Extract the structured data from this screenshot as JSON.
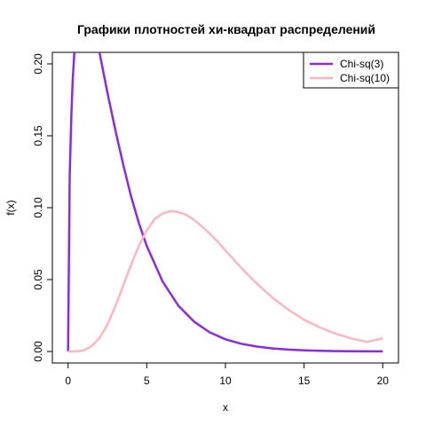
{
  "chart_data": {
    "type": "line",
    "title": "Графики плотностей хи-квадрат распределений",
    "xlabel": "x",
    "ylabel": "f(x)",
    "xlim": [
      -1,
      21
    ],
    "ylim": [
      -0.008,
      0.208
    ],
    "x_ticks": [
      0,
      5,
      10,
      15,
      20
    ],
    "x_tick_labels": [
      "0",
      "5",
      "10",
      "15",
      "20"
    ],
    "y_ticks": [
      0.0,
      0.05,
      0.1,
      0.15,
      0.2
    ],
    "y_tick_labels": [
      "0.00",
      "0.05",
      "0.10",
      "0.15",
      "0.20"
    ],
    "legend_position": "top-right",
    "grid": false,
    "series": [
      {
        "name": "Chi-sq(3)",
        "df": 3,
        "color": "#8a2be2",
        "x": [
          0,
          0.1,
          0.2,
          0.3,
          0.4,
          0.5,
          0.75,
          1,
          1.5,
          2,
          2.5,
          3,
          3.5,
          4,
          4.5,
          5,
          6,
          7,
          8,
          9,
          10,
          11,
          12,
          13,
          14,
          15,
          16,
          17,
          18,
          19,
          20
        ],
        "values": [
          0,
          0.1208,
          0.1629,
          0.1898,
          0.208,
          0.2197,
          0.2379,
          0.242,
          0.2309,
          0.2076,
          0.1801,
          0.1542,
          0.13,
          0.108,
          0.0892,
          0.0733,
          0.0488,
          0.032,
          0.0208,
          0.0133,
          0.0085,
          0.0054,
          0.0034,
          0.0021,
          0.0013,
          0.0008,
          0.0005,
          0.0003,
          0.0002,
          0.0001,
          0.0001
        ]
      },
      {
        "name": "Chi-sq(10)",
        "df": 10,
        "color": "#ffb6c1",
        "x": [
          0,
          0.5,
          1,
          1.5,
          2,
          2.5,
          3,
          3.5,
          4,
          4.5,
          5,
          5.5,
          6,
          6.5,
          7,
          7.5,
          8,
          8.5,
          9,
          9.5,
          10,
          11,
          12,
          13,
          14,
          15,
          16,
          17,
          18,
          19,
          20
        ],
        "values": [
          0,
          0.0001,
          0.0008,
          0.0037,
          0.0095,
          0.0187,
          0.0314,
          0.0458,
          0.0602,
          0.0735,
          0.0842,
          0.0921,
          0.0959,
          0.0976,
          0.097,
          0.095,
          0.0916,
          0.087,
          0.082,
          0.0765,
          0.0702,
          0.0582,
          0.0471,
          0.0373,
          0.029,
          0.0221,
          0.0167,
          0.0124,
          0.0091,
          0.0066,
          0.0092
        ]
      }
    ]
  }
}
